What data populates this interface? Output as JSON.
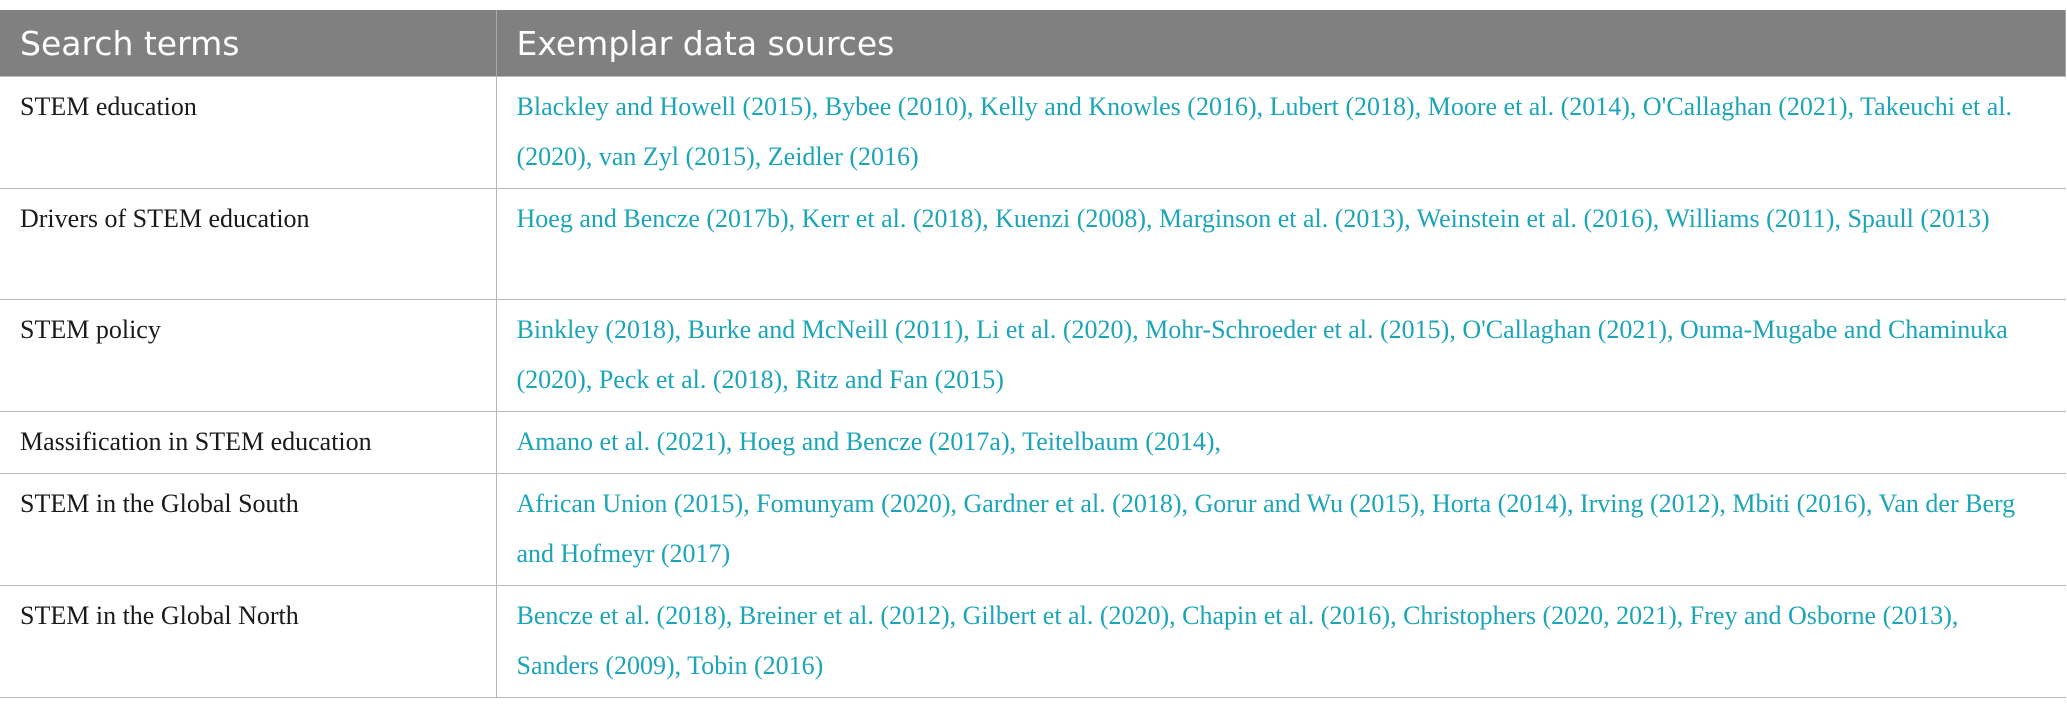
{
  "table": {
    "columns": [
      "Search terms",
      "Exemplar data sources"
    ],
    "rows": [
      [
        "STEM education",
        "Blackley and Howell (2015), Bybee (2010), Kelly and Knowles (2016), Lubert (2018), Moore et al. (2014), O'Callaghan (2021), Takeuchi et al. (2020), van Zyl (2015), Zeidler (2016)"
      ],
      [
        "Drivers of STEM education",
        "Hoeg and Bencze (2017b), Kerr et al. (2018), Kuenzi (2008), Marginson et al. (2013), Weinstein et al. (2016), Williams (2011), Spaull (2013)"
      ],
      [
        "STEM policy",
        "Binkley (2018), Burke and McNeill (2011), Li et al. (2020), Mohr-Schroeder et al. (2015), O'Callaghan (2021), Ouma-Mugabe and Chaminuka (2020), Peck et al. (2018), Ritz and Fan (2015)"
      ],
      [
        "Massification in STEM education",
        "Amano et al. (2021), Hoeg and Bencze (2017a), Teitelbaum (2014),"
      ],
      [
        "STEM in the Global South",
        "African Union (2015), Fomunyam (2020), Gardner et al. (2018), Gorur and Wu (2015), Horta (2014), Irving (2012), Mbiti (2016), Van der Berg and Hofmeyr (2017)"
      ],
      [
        "STEM in the Global North",
        "Bencze et al. (2018), Breiner et al. (2012), Gilbert et al. (2020), Chapin et al. (2016), Christophers (2020, 2021), Frey and Osborne (2013), Sanders (2009), Tobin (2016)"
      ]
    ]
  }
}
